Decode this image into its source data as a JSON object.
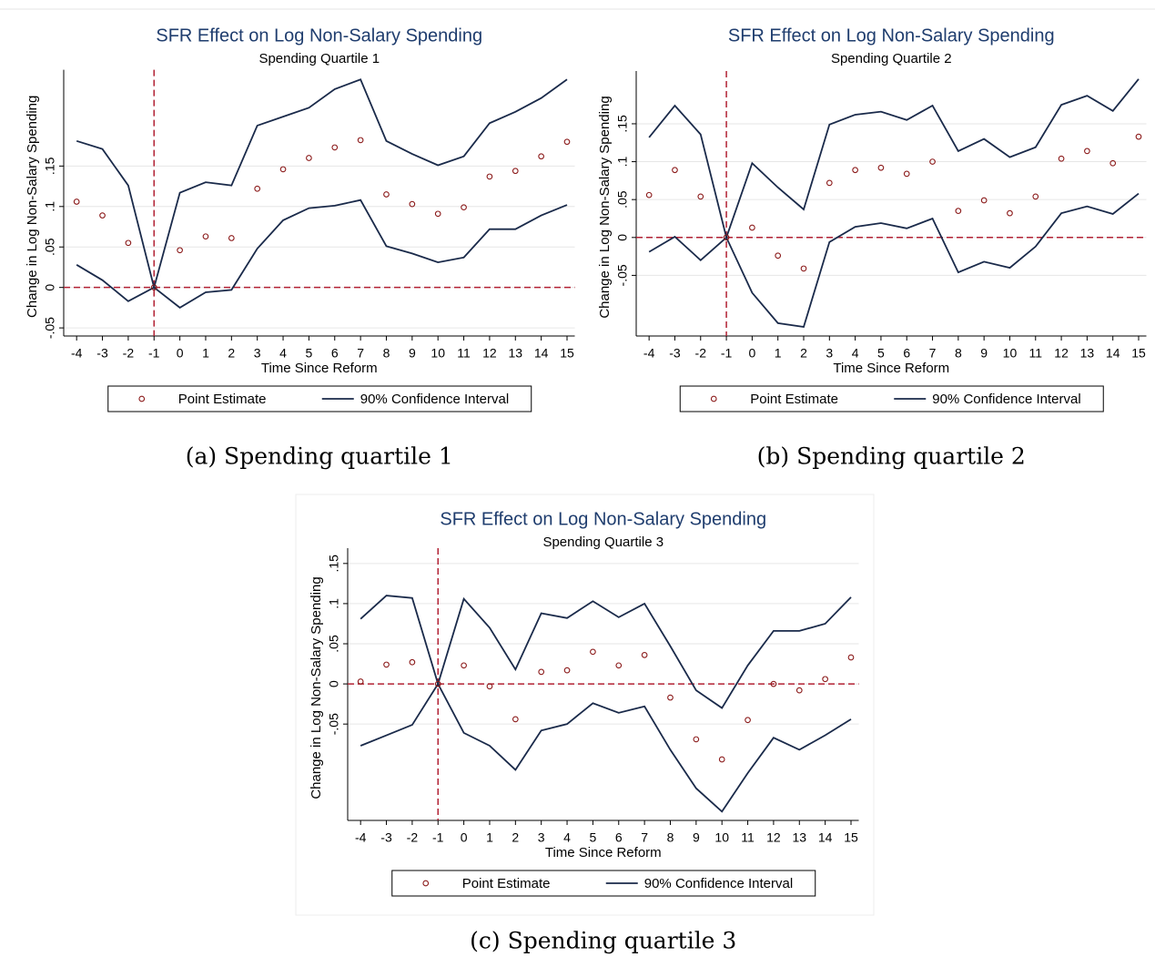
{
  "chart_data": [
    {
      "type": "line",
      "title": "SFR Effect on Log Non-Salary Spending",
      "subtitle": "Spending Quartile 1",
      "x_label": "Time Since Reform",
      "y_label": "Change in Log Non-Salary Spending",
      "caption": "(a) Spending quartile 1",
      "x": [
        -4,
        -3,
        -2,
        -1,
        0,
        1,
        2,
        3,
        4,
        5,
        6,
        7,
        8,
        9,
        10,
        11,
        12,
        13,
        14,
        15
      ],
      "xlim": [
        -4.5,
        15.3
      ],
      "xticks": [
        -4,
        -3,
        -2,
        -1,
        0,
        1,
        2,
        3,
        4,
        5,
        6,
        7,
        8,
        9,
        10,
        11,
        12,
        13,
        14,
        15
      ],
      "ylim": [
        -0.06,
        0.26
      ],
      "yticks": [
        {
          "value": -0.05,
          "label": "-.05"
        },
        0,
        {
          "value": 0.05,
          "label": ".05"
        },
        {
          "value": 0.1,
          "label": ".1"
        },
        {
          "value": 0.15,
          "label": ".15"
        }
      ],
      "grid": true,
      "reference_lines": {
        "x": -1,
        "y": 0,
        "color": "#b22234"
      },
      "series": [
        {
          "name": "Point Estimate",
          "color": "#8b1a1a",
          "marker": "circle",
          "values": [
            0.106,
            0.089,
            0.055,
            0,
            0.046,
            0.063,
            0.061,
            0.122,
            0.146,
            0.16,
            0.173,
            0.182,
            0.115,
            0.103,
            0.091,
            0.099,
            0.137,
            0.144,
            0.162,
            0.18
          ]
        },
        {
          "name": "90% Confidence Interval",
          "color": "#1a2a4a",
          "upper": [
            0.181,
            0.171,
            0.126,
            0,
            0.117,
            0.13,
            0.126,
            0.2,
            0.211,
            0.222,
            0.245,
            0.257,
            0.181,
            0.165,
            0.151,
            0.162,
            0.203,
            0.217,
            0.234,
            0.257
          ],
          "lower": [
            0.028,
            0.009,
            -0.017,
            0,
            -0.025,
            -0.006,
            -0.003,
            0.048,
            0.083,
            0.098,
            0.101,
            0.108,
            0.051,
            0.042,
            0.031,
            0.037,
            0.072,
            0.072,
            0.089,
            0.102
          ]
        }
      ]
    },
    {
      "type": "line",
      "title": "SFR Effect on Log Non-Salary Spending",
      "subtitle": "Spending Quartile 2",
      "x_label": "Time Since Reform",
      "y_label": "Change in Log Non-Salary Spending",
      "caption": "(b) Spending quartile 2",
      "x": [
        -4,
        -3,
        -2,
        -1,
        0,
        1,
        2,
        3,
        4,
        5,
        6,
        7,
        8,
        9,
        10,
        11,
        12,
        13,
        14,
        15
      ],
      "xlim": [
        -4.5,
        15.3
      ],
      "xticks": [
        -4,
        -3,
        -2,
        -1,
        0,
        1,
        2,
        3,
        4,
        5,
        6,
        7,
        8,
        9,
        10,
        11,
        12,
        13,
        14,
        15
      ],
      "ylim": [
        -0.13,
        0.21
      ],
      "yticks": [
        {
          "value": -0.05,
          "label": "-.05"
        },
        0,
        {
          "value": 0.05,
          "label": ".05"
        },
        {
          "value": 0.1,
          "label": ".1"
        },
        {
          "value": 0.15,
          "label": ".15"
        }
      ],
      "grid": true,
      "reference_lines": {
        "x": -1,
        "y": 0,
        "color": "#b22234"
      },
      "series": [
        {
          "name": "Point Estimate",
          "color": "#8b1a1a",
          "marker": "circle",
          "values": [
            0.056,
            0.089,
            0.054,
            0,
            0.013,
            -0.024,
            -0.041,
            0.072,
            0.089,
            0.092,
            0.084,
            0.1,
            0.035,
            0.049,
            0.032,
            0.054,
            0.104,
            0.114,
            0.098,
            0.133
          ]
        },
        {
          "name": "90% Confidence Interval",
          "color": "#1a2a4a",
          "upper": [
            0.132,
            0.174,
            0.136,
            0,
            0.098,
            0.066,
            0.037,
            0.149,
            0.162,
            0.166,
            0.155,
            0.174,
            0.114,
            0.13,
            0.106,
            0.119,
            0.175,
            0.187,
            0.167,
            0.209
          ],
          "lower": [
            -0.019,
            0.001,
            -0.03,
            0,
            -0.073,
            -0.113,
            -0.118,
            -0.006,
            0.014,
            0.019,
            0.012,
            0.025,
            -0.046,
            -0.032,
            -0.04,
            -0.012,
            0.032,
            0.041,
            0.031,
            0.058
          ]
        }
      ]
    },
    {
      "type": "line",
      "title": "SFR Effect on Log Non-Salary Spending",
      "subtitle": "Spending Quartile 3",
      "x_label": "Time Since Reform",
      "y_label": "Change in Log Non-Salary Spending",
      "caption": "(c) Spending quartile 3",
      "x": [
        -4,
        -3,
        -2,
        -1,
        0,
        1,
        2,
        3,
        4,
        5,
        6,
        7,
        8,
        9,
        10,
        11,
        12,
        13,
        14,
        15
      ],
      "xlim": [
        -4.5,
        15.3
      ],
      "xticks": [
        -4,
        -3,
        -2,
        -1,
        0,
        1,
        2,
        3,
        4,
        5,
        6,
        7,
        8,
        9,
        10,
        11,
        12,
        13,
        14,
        15
      ],
      "ylim": [
        -0.17,
        0.16
      ],
      "yticks": [
        {
          "value": -0.05,
          "label": "-.05"
        },
        0,
        {
          "value": 0.05,
          "label": ".05"
        },
        {
          "value": 0.1,
          "label": ".1"
        },
        {
          "value": 0.15,
          "label": ".15"
        }
      ],
      "grid": true,
      "reference_lines": {
        "x": -1,
        "y": 0,
        "color": "#b22234"
      },
      "series": [
        {
          "name": "Point Estimate",
          "color": "#8b1a1a",
          "marker": "circle",
          "values": [
            0.003,
            0.024,
            0.027,
            0,
            0.023,
            -0.003,
            -0.044,
            0.015,
            0.017,
            0.04,
            0.023,
            0.036,
            -0.017,
            -0.069,
            -0.094,
            -0.045,
            0,
            -0.008,
            0.006,
            0.033
          ]
        },
        {
          "name": "90% Confidence Interval",
          "color": "#1a2a4a",
          "upper": [
            0.081,
            0.11,
            0.107,
            0,
            0.106,
            0.07,
            0.018,
            0.088,
            0.082,
            0.103,
            0.083,
            0.1,
            0.047,
            -0.008,
            -0.03,
            0.023,
            0.066,
            0.066,
            0.075,
            0.108
          ],
          "lower": [
            -0.077,
            -0.064,
            -0.051,
            0,
            -0.061,
            -0.077,
            -0.107,
            -0.058,
            -0.05,
            -0.024,
            -0.036,
            -0.028,
            -0.082,
            -0.13,
            -0.159,
            -0.111,
            -0.067,
            -0.082,
            -0.064,
            -0.044
          ]
        }
      ]
    }
  ]
}
